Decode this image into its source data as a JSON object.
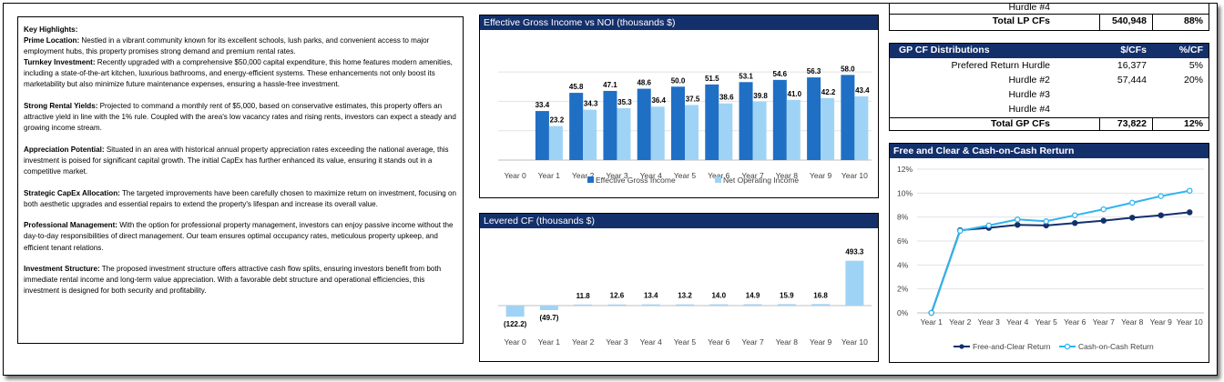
{
  "highlights": {
    "heading": "Key Highlights:",
    "paragraphs": [
      {
        "title": "Prime Location:",
        "text": " Nestled in a vibrant community known for its excellent schools, lush parks, and convenient access to major employment hubs, this property promises strong demand and premium rental rates."
      },
      {
        "title": "Turnkey Investment:",
        "text": " Recently upgraded with a comprehensive $50,000 capital expenditure, this home features modern amenities, including a state-of-the-art kitchen, luxurious bathrooms, and energy-efficient systems. These enhancements not only boost its marketability but also minimize future maintenance expenses, ensuring a hassle-free investment."
      },
      {
        "title": "Strong Rental Yields:",
        "text": " Projected to command a monthly rent of $5,000, based on conservative estimates, this property offers an attractive yield in line with the 1% rule. Coupled with the area's low vacancy rates and rising rents, investors can expect a steady and growing income stream."
      },
      {
        "title": "Appreciation Potential:",
        "text": " Situated in an area with historical annual property appreciation rates exceeding the national average, this investment is poised for significant capital growth. The initial CapEx has further enhanced its value, ensuring it stands out in a competitive market."
      },
      {
        "title": "Strategic CapEx Allocation:",
        "text": " The targeted improvements have been carefully chosen to maximize return on investment, focusing on both aesthetic upgrades and essential repairs to extend the property's lifespan and increase its overall value."
      },
      {
        "title": "Professional Management:",
        "text": " With the option for professional property management, investors can enjoy passive income without the day-to-day responsibilities of direct management. Our team ensures optimal occupancy rates, meticulous property upkeep, and efficient tenant relations."
      },
      {
        "title": "Investment Structure:",
        "text": " The proposed investment structure offers attractive cash flow splits, ensuring investors benefit from both immediate rental income and long-term value appreciation. With a favorable debt structure and operational efficiencies, this investment is designed for both security and profitability."
      }
    ]
  },
  "lp_table": {
    "partial_label": "Hurdle #4",
    "total_label": "Total LP CFs",
    "total_cfs": "540,948",
    "total_pct": "88%"
  },
  "gp_table": {
    "header": {
      "label": "GP CF Distributions",
      "cfs": "$/CFs",
      "pct": "%/CF"
    },
    "rows": [
      {
        "label": "Prefered  Return Hurdle",
        "cfs": "16,377",
        "pct": "5%"
      },
      {
        "label": "Hurdle #2",
        "cfs": "57,444",
        "pct": "20%"
      },
      {
        "label": "Hurdle #3",
        "cfs": "",
        "pct": ""
      },
      {
        "label": "Hurdle #4",
        "cfs": "",
        "pct": ""
      }
    ],
    "total": {
      "label": "Total GP CFs",
      "cfs": "73,822",
      "pct": "12%"
    }
  },
  "colors": {
    "title_bar": "#14306b",
    "egi_bar": "#1f6fc5",
    "noi_bar": "#9fd3f5",
    "levered_bar": "#9fd3f5",
    "free_clear_line": "#14306b",
    "coc_line": "#2fb4ef"
  },
  "chart_data": [
    {
      "type": "bar",
      "title": "Effective Gross Income vs NOI (thousands $)",
      "categories": [
        "Year 0",
        "Year 1",
        "Year 2",
        "Year 3",
        "Year 4",
        "Year 5",
        "Year 6",
        "Year 7",
        "Year 8",
        "Year 9",
        "Year 10"
      ],
      "series": [
        {
          "name": "Effective Gross Income",
          "values": [
            null,
            33.4,
            45.8,
            47.1,
            48.6,
            50.0,
            51.5,
            53.1,
            54.6,
            56.3,
            58.0
          ],
          "labels": [
            "",
            "33.4",
            "45.8",
            "47.1",
            "48.6",
            "50.0",
            "51.5",
            "53.1",
            "54.6",
            "56.3",
            "58.0"
          ]
        },
        {
          "name": "Net Operating Income",
          "values": [
            null,
            23.2,
            34.3,
            35.3,
            36.4,
            37.5,
            38.6,
            39.8,
            41.0,
            42.2,
            43.4
          ],
          "labels": [
            "",
            "23.2",
            "34.3",
            "35.3",
            "36.4",
            "37.5",
            "38.6",
            "39.8",
            "41.0",
            "42.2",
            "43.4"
          ]
        }
      ],
      "ylim": [
        0,
        70
      ],
      "legend": "bottom"
    },
    {
      "type": "bar",
      "title": "Levered CF (thousands $)",
      "categories": [
        "Year 0",
        "Year 1",
        "Year 2",
        "Year 3",
        "Year 4",
        "Year 5",
        "Year 6",
        "Year 7",
        "Year 8",
        "Year 9",
        "Year 10"
      ],
      "values": [
        -122.2,
        -49.7,
        11.8,
        12.6,
        13.4,
        13.2,
        14.0,
        14.9,
        15.9,
        16.8,
        493.3
      ],
      "labels": [
        "(122.2)",
        "(49.7)",
        "11.8",
        "12.6",
        "13.4",
        "13.2",
        "14.0",
        "14.9",
        "15.9",
        "16.8",
        "493.3"
      ],
      "ylim": [
        -130,
        520
      ]
    },
    {
      "type": "line",
      "title": "Free and Clear & Cash-on-Cash Rerturn",
      "categories": [
        "Year 1",
        "Year 2",
        "Year 3",
        "Year 4",
        "Year 5",
        "Year 6",
        "Year 7",
        "Year 8",
        "Year 9",
        "Year 10"
      ],
      "yticks": [
        "0%",
        "2%",
        "4%",
        "6%",
        "8%",
        "10%",
        "12%"
      ],
      "ylim": [
        0,
        12
      ],
      "series": [
        {
          "name": "Free-and-Clear Return",
          "values": [
            0,
            6.9,
            7.1,
            7.35,
            7.3,
            7.5,
            7.7,
            7.95,
            8.15,
            8.4
          ]
        },
        {
          "name": "Cash-on-Cash Return",
          "values": [
            0,
            6.85,
            7.3,
            7.8,
            7.65,
            8.15,
            8.65,
            9.2,
            9.75,
            10.2
          ]
        }
      ],
      "legend": "bottom"
    }
  ]
}
